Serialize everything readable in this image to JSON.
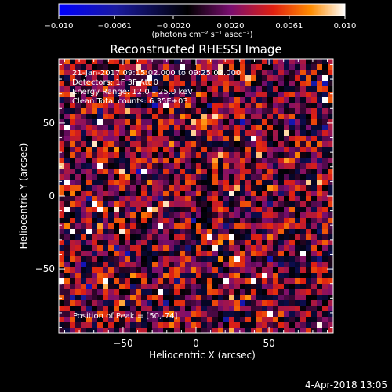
{
  "chart_data": {
    "type": "heatmap",
    "title": "Reconstructed RHESSI Image",
    "xlabel": "Heliocentric X (arcsec)",
    "ylabel": "Heliocentric Y (arcsec)",
    "xlim": [
      -94,
      94
    ],
    "ylim": [
      -94,
      94
    ],
    "xticks": [
      -50,
      0,
      50
    ],
    "yticks": [
      50,
      0,
      -50
    ],
    "colorbar": {
      "label": "(photons cm⁻² s⁻¹ asec⁻²)",
      "range": [
        -0.01,
        0.01
      ],
      "ticks": [
        -0.01,
        -0.0061,
        -0.002,
        0.002,
        0.0061,
        0.01
      ],
      "tick_labels": [
        "−0.010",
        "−0.0061",
        "−0.0020",
        "0.0020",
        "0.0061",
        "0.010"
      ]
    },
    "annotations": [
      "21-Jan-2017 09:15:02.000 to 09:25:02.000",
      "Detectors: 1F 3F  Att 0",
      "Energy Range: 12.0 – 25.0 keV",
      "Clean    Total counts: 6.35E+03"
    ],
    "peak_label": "Position of Peak = [50,-74]",
    "grid": false
  },
  "timestamp": "4-Apr-2018 13:05"
}
